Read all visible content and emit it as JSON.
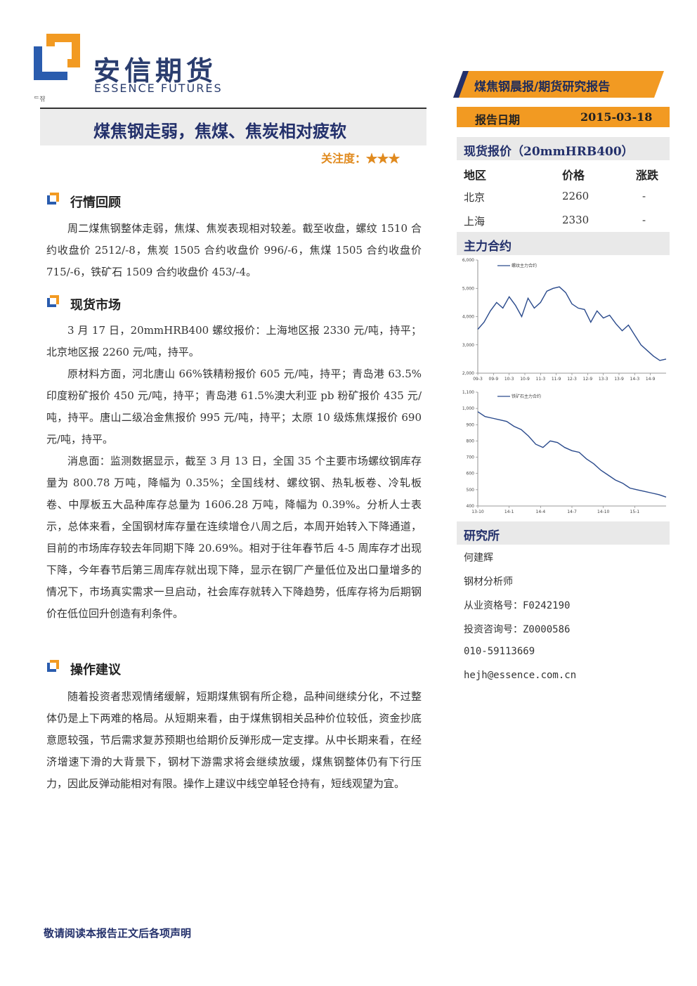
{
  "logo": {
    "cn": "安信期货",
    "en": "ESSENCE FUTURES",
    "tiny": "ᄃ쟊"
  },
  "banner": {
    "text": "煤焦钢晨报/期货研究报告"
  },
  "report_date": {
    "label": "报告日期",
    "value": "2015-03-18"
  },
  "title": "煤焦钢走弱，焦煤、焦炭相对疲软",
  "attention": {
    "label": "关注度：",
    "stars": "★★★"
  },
  "sections": {
    "review": {
      "heading": "行情回顾",
      "paragraphs": [
        "周二煤焦钢整体走弱，焦煤、焦炭表现相对较差。截至收盘，螺纹 1510 合约收盘价 2512/-8，焦炭 1505 合约收盘价 996/-6，焦煤 1505 合约收盘价 715/-6，铁矿石 1509 合约收盘价 453/-4。"
      ]
    },
    "spot": {
      "heading": "现货市场",
      "paragraphs": [
        "3 月 17 日，20mmHRB400 螺纹报价：上海地区报 2330 元/吨，持平；北京地区报 2260 元/吨，持平。",
        "原材料方面，河北唐山 66%铁精粉报价 605 元/吨，持平；青岛港 63.5%印度粉矿报价 450 元/吨，持平；青岛港 61.5%澳大利亚 pb 粉矿报价 435 元/吨，持平。唐山二级冶金焦报价 995 元/吨，持平；太原 10 级炼焦煤报价 690 元/吨，持平。",
        "消息面：监测数据显示，截至 3 月 13 日，全国 35 个主要市场螺纹钢库存量为 800.78 万吨，降幅为 0.35%；全国线材、螺纹钢、热轧板卷、冷轧板卷、中厚板五大品种库存总量为 1606.28 万吨，降幅为 0.39%。分析人士表示，总体来看，全国钢材库存量在连续增仓八周之后，本周开始转入下降通道，目前的市场库存较去年同期下降 20.69%。相对于往年春节后 4-5 周库存才出现下降，今年春节后第三周库存就出现下降，显示在钢厂产量低位及出口量增多的情况下，市场真实需求一旦启动，社会库存就转入下降趋势，低库存将为后期钢价在低位回升创造有利条件。"
      ]
    },
    "advice": {
      "heading": "操作建议",
      "paragraphs": [
        "随着投资者悲观情绪缓解，短期煤焦钢有所企稳，品种间继续分化，不过整体仍是上下两难的格局。从短期来看，由于煤焦钢相关品种价位较低，资金抄底意愿较强，节后需求复苏预期也给期价反弹形成一定支撑。从中长期来看，在经济增速下滑的大背景下，钢材下游需求将会继续放缓，煤焦钢整体仍有下行压力，因此反弹动能相对有限。操作上建议中线空单轻仓持有，短线观望为宜。"
      ]
    }
  },
  "spot_price": {
    "heading": "现货报价（20mmHRB400）",
    "columns": [
      "地区",
      "价格",
      "涨跌"
    ],
    "rows": [
      [
        "北京",
        "2260",
        "-"
      ],
      [
        "上海",
        "2330",
        "-"
      ]
    ]
  },
  "main_contract": {
    "heading": "主力合约"
  },
  "chart_data": [
    {
      "type": "line",
      "legend": "螺纹主力合约",
      "x_ticks": [
        "09-3",
        "09-9",
        "10-3",
        "10-9",
        "11-3",
        "11-9",
        "12-3",
        "12-9",
        "13-3",
        "13-9",
        "14-3",
        "14-9"
      ],
      "y_ticks": [
        "2,000",
        "3,000",
        "4,000",
        "5,000",
        "6,000"
      ],
      "ylim": [
        2000,
        6000
      ],
      "series": [
        {
          "values": [
            3550,
            3800,
            4200,
            4500,
            4300,
            4700,
            4400,
            4000,
            4650,
            4300,
            4500,
            4900,
            5000,
            5050,
            4850,
            4450,
            4300,
            4250,
            3800,
            4200,
            3950,
            4050,
            3750,
            3500,
            3700,
            3350,
            3000,
            2800,
            2600,
            2450,
            2500
          ]
        }
      ]
    },
    {
      "type": "line",
      "legend": "铁矿石主力合约",
      "x_ticks": [
        "13-10",
        "14-1",
        "14-4",
        "14-7",
        "14-10",
        "15-1"
      ],
      "y_ticks": [
        "400",
        "500",
        "600",
        "700",
        "800",
        "900",
        "1,000",
        "1,100"
      ],
      "ylim": [
        400,
        1100
      ],
      "series": [
        {
          "values": [
            980,
            950,
            940,
            930,
            920,
            890,
            870,
            830,
            780,
            760,
            800,
            790,
            760,
            740,
            730,
            690,
            660,
            620,
            590,
            560,
            540,
            510,
            500,
            490,
            480,
            470,
            455
          ]
        }
      ]
    }
  ],
  "research": {
    "heading": "研究所",
    "lines": [
      "何建辉",
      "钢材分析师",
      "从业资格号：F0242190",
      "投资咨询号：Z0000586",
      "010-59113669",
      "hejh@essence.com.cn"
    ]
  },
  "footer": "敬请阅读本报告正文后各项声明",
  "colors": {
    "navy": "#23306b",
    "orange": "#f29a22",
    "blue": "#2a5cae"
  }
}
